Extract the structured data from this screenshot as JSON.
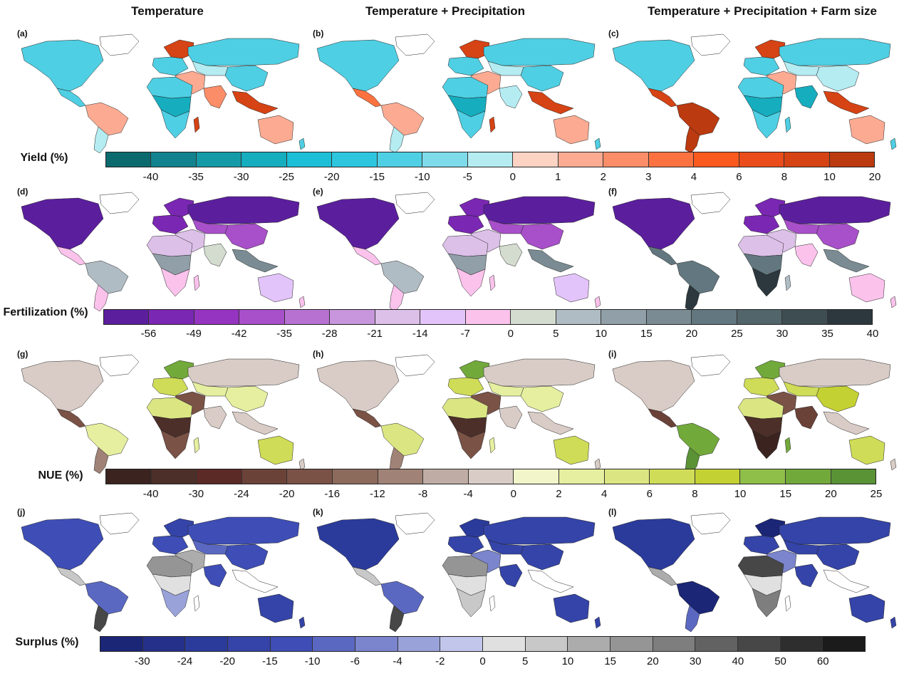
{
  "column_titles": [
    "Temperature",
    "Temperature + Precipitation",
    "Temperature + Precipitation + Farm size"
  ],
  "rows": [
    {
      "legend_label": "Yield (%)",
      "tick_labels": [
        "-40",
        "-35",
        "-30",
        "-25",
        "-20",
        "-15",
        "-10",
        "-5",
        "0",
        "1",
        "2",
        "3",
        "4",
        "6",
        "8",
        "10",
        "20"
      ],
      "colors": [
        "#0b6a6e",
        "#12838e",
        "#159aa8",
        "#16adbf",
        "#1cbfd6",
        "#2ec6df",
        "#4fcfe3",
        "#7ddbea",
        "#b4ecf2",
        "#fdd3c4",
        "#fcab92",
        "#fb8d68",
        "#fb7240",
        "#fb5a1e",
        "#ea4d1b",
        "#d64314",
        "#bb3a10"
      ],
      "panels": [
        {
          "label": "(a)",
          "colors": {
            "north_america": "#4fcfe3",
            "greenland": "#ffffff",
            "central_america": "#4fcfe3",
            "south_america_north": "#fcab92",
            "south_america_south": "#b4ecf2",
            "europe_north": "#d64314",
            "europe_west": "#4fcfe3",
            "russia": "#4fcfe3",
            "middle_east": "#fcab92",
            "central_asia": "#b4ecf2",
            "china": "#4fcfe3",
            "india": "#fb8d68",
            "southeast_asia": "#d64314",
            "africa_north": "#4fcfe3",
            "africa_central": "#16adbf",
            "africa_south": "#4fcfe3",
            "madagascar": "#d64314",
            "australia": "#fcab92",
            "new_zealand": "#4fcfe3"
          }
        },
        {
          "label": "(b)",
          "colors": {
            "north_america": "#4fcfe3",
            "greenland": "#ffffff",
            "central_america": "#fb7240",
            "south_america_north": "#fcab92",
            "south_america_south": "#b4ecf2",
            "europe_north": "#d64314",
            "europe_west": "#4fcfe3",
            "russia": "#4fcfe3",
            "middle_east": "#fcab92",
            "central_asia": "#b4ecf2",
            "china": "#4fcfe3",
            "india": "#b4ecf2",
            "southeast_asia": "#d64314",
            "africa_north": "#4fcfe3",
            "africa_central": "#16adbf",
            "africa_south": "#4fcfe3",
            "madagascar": "#d64314",
            "australia": "#fcab92",
            "new_zealand": "#4fcfe3"
          }
        },
        {
          "label": "(c)",
          "colors": {
            "north_america": "#4fcfe3",
            "greenland": "#ffffff",
            "central_america": "#d64314",
            "south_america_north": "#bb3a10",
            "south_america_south": "#bb3a10",
            "europe_north": "#d64314",
            "europe_west": "#4fcfe3",
            "russia": "#4fcfe3",
            "middle_east": "#fcab92",
            "central_asia": "#b4ecf2",
            "china": "#b4ecf2",
            "india": "#16adbf",
            "southeast_asia": "#d64314",
            "africa_north": "#4fcfe3",
            "africa_central": "#16adbf",
            "africa_south": "#4fcfe3",
            "madagascar": "#4fcfe3",
            "australia": "#fcab92",
            "new_zealand": "#4fcfe3"
          }
        }
      ]
    },
    {
      "legend_label": "Fertilization (%)",
      "tick_labels": [
        "-56",
        "-49",
        "-42",
        "-35",
        "-28",
        "-21",
        "-14",
        "-7",
        "0",
        "5",
        "10",
        "15",
        "20",
        "25",
        "30",
        "35",
        "40"
      ],
      "colors": [
        "#5b1f9e",
        "#7a27b3",
        "#9634c2",
        "#a84fca",
        "#b772d1",
        "#c896dc",
        "#dcc0e8",
        "#e3c4fa",
        "#fbc2ec",
        "#d3dccf",
        "#b0bcc4",
        "#909fa8",
        "#7a8b93",
        "#62777f",
        "#52656b",
        "#3e4d52",
        "#2c383d"
      ],
      "panels": [
        {
          "label": "(d)",
          "colors": {
            "north_america": "#5b1f9e",
            "greenland": "#ffffff",
            "central_america": "#fbc2ec",
            "south_america_north": "#b0bcc4",
            "south_america_south": "#fbc2ec",
            "europe_north": "#7a27b3",
            "europe_west": "#7a27b3",
            "russia": "#5b1f9e",
            "middle_east": "#dcc0e8",
            "central_asia": "#a84fca",
            "china": "#a84fca",
            "india": "#d3dccf",
            "southeast_asia": "#7a8b93",
            "africa_north": "#dcc0e8",
            "africa_central": "#909fa8",
            "africa_south": "#fbc2ec",
            "madagascar": "#fbc2ec",
            "australia": "#e3c4fa",
            "new_zealand": "#fbc2ec"
          }
        },
        {
          "label": "(e)",
          "colors": {
            "north_america": "#5b1f9e",
            "greenland": "#ffffff",
            "central_america": "#fbc2ec",
            "south_america_north": "#b0bcc4",
            "south_america_south": "#fbc2ec",
            "europe_north": "#7a27b3",
            "europe_west": "#7a27b3",
            "russia": "#5b1f9e",
            "middle_east": "#dcc0e8",
            "central_asia": "#a84fca",
            "china": "#a84fca",
            "india": "#d3dccf",
            "southeast_asia": "#7a8b93",
            "africa_north": "#dcc0e8",
            "africa_central": "#909fa8",
            "africa_south": "#fbc2ec",
            "madagascar": "#fbc2ec",
            "australia": "#e3c4fa",
            "new_zealand": "#fbc2ec"
          }
        },
        {
          "label": "(f)",
          "colors": {
            "north_america": "#5b1f9e",
            "greenland": "#ffffff",
            "central_america": "#62777f",
            "south_america_north": "#62777f",
            "south_america_south": "#2c383d",
            "europe_north": "#7a27b3",
            "europe_west": "#7a27b3",
            "russia": "#5b1f9e",
            "middle_east": "#dcc0e8",
            "central_asia": "#a84fca",
            "china": "#a84fca",
            "india": "#fbc2ec",
            "southeast_asia": "#7a8b93",
            "africa_north": "#dcc0e8",
            "africa_central": "#62777f",
            "africa_south": "#2c383d",
            "madagascar": "#b0bcc4",
            "australia": "#fbc2ec",
            "new_zealand": "#fbc2ec"
          }
        }
      ]
    },
    {
      "legend_label": "NUE (%)",
      "tick_labels": [
        "-40",
        "-30",
        "-24",
        "-20",
        "-16",
        "-12",
        "-8",
        "-4",
        "0",
        "2",
        "4",
        "6",
        "8",
        "10",
        "15",
        "20",
        "25"
      ],
      "colors": [
        "#3b2420",
        "#4d2f29",
        "#5b2a26",
        "#6b4238",
        "#7a5246",
        "#8c6a5c",
        "#a08276",
        "#bfaca4",
        "#d9ccc6",
        "#f1f5c9",
        "#e6ef9f",
        "#dbe683",
        "#cfdc57",
        "#c4d132",
        "#8fbf48",
        "#72a93b",
        "#5a9236"
      ],
      "panels": [
        {
          "label": "(g)",
          "colors": {
            "north_america": "#d9ccc6",
            "greenland": "#ffffff",
            "central_america": "#7a5246",
            "south_america_north": "#e6ef9f",
            "south_america_south": "#a08276",
            "europe_north": "#72a93b",
            "europe_west": "#cfdc57",
            "russia": "#d9ccc6",
            "middle_east": "#7a5246",
            "central_asia": "#e6ef9f",
            "china": "#e6ef9f",
            "india": "#d9ccc6",
            "southeast_asia": "#d9ccc6",
            "africa_north": "#dbe683",
            "africa_central": "#4d2f29",
            "africa_south": "#7a5246",
            "madagascar": "#e6ef9f",
            "australia": "#cfdc57",
            "new_zealand": "#d9ccc6"
          }
        },
        {
          "label": "(h)",
          "colors": {
            "north_america": "#d9ccc6",
            "greenland": "#ffffff",
            "central_america": "#7a5246",
            "south_america_north": "#dbe683",
            "south_america_south": "#a08276",
            "europe_north": "#72a93b",
            "europe_west": "#cfdc57",
            "russia": "#d9ccc6",
            "middle_east": "#7a5246",
            "central_asia": "#e6ef9f",
            "china": "#e6ef9f",
            "india": "#d9ccc6",
            "southeast_asia": "#d9ccc6",
            "africa_north": "#dbe683",
            "africa_central": "#4d2f29",
            "africa_south": "#7a5246",
            "madagascar": "#e6ef9f",
            "australia": "#cfdc57",
            "new_zealand": "#d9ccc6"
          }
        },
        {
          "label": "(i)",
          "colors": {
            "north_america": "#d9ccc6",
            "greenland": "#ffffff",
            "central_america": "#6b4238",
            "south_america_north": "#72a93b",
            "south_america_south": "#5a9236",
            "europe_north": "#72a93b",
            "europe_west": "#cfdc57",
            "russia": "#d9ccc6",
            "middle_east": "#7a5246",
            "central_asia": "#cfdc57",
            "china": "#c4d132",
            "india": "#6b4238",
            "southeast_asia": "#d9ccc6",
            "africa_north": "#dbe683",
            "africa_central": "#4d2f29",
            "africa_south": "#3b2420",
            "madagascar": "#72a93b",
            "australia": "#cfdc57",
            "new_zealand": "#d9ccc6"
          }
        }
      ]
    },
    {
      "legend_label": "Surplus (%)",
      "tick_labels": [
        "-30",
        "-24",
        "-20",
        "-15",
        "-10",
        "-6",
        "-4",
        "-2",
        "0",
        "5",
        "10",
        "15",
        "20",
        "30",
        "40",
        "50",
        "60"
      ],
      "colors": [
        "#1b2677",
        "#24308a",
        "#2b3b9b",
        "#3444a8",
        "#3e4eb6",
        "#5b68c2",
        "#7a85cd",
        "#9aa2da",
        "#c2c6eb",
        "#e0e0e0",
        "#c8c8c8",
        "#acacac",
        "#959595",
        "#7e7e7e",
        "#626262",
        "#474747",
        "#2e2e2e",
        "#1b1b1b"
      ],
      "panels": [
        {
          "label": "(j)",
          "colors": {
            "north_america": "#3e4eb6",
            "greenland": "#ffffff",
            "central_america": "#c8c8c8",
            "south_america_north": "#5b68c2",
            "south_america_south": "#474747",
            "europe_north": "#3444a8",
            "europe_west": "#3e4eb6",
            "russia": "#3e4eb6",
            "middle_east": "#acacac",
            "central_asia": "#5b68c2",
            "china": "#3e4eb6",
            "india": "#3e4eb6",
            "southeast_asia": "#ffffff",
            "africa_north": "#959595",
            "africa_central": "#e0e0e0",
            "africa_south": "#9aa2da",
            "madagascar": "#ffffff",
            "australia": "#3444a8",
            "new_zealand": "#3444a8"
          }
        },
        {
          "label": "(k)",
          "colors": {
            "north_america": "#2b3b9b",
            "greenland": "#ffffff",
            "central_america": "#c8c8c8",
            "south_america_north": "#5b68c2",
            "south_america_south": "#474747",
            "europe_north": "#2b3b9b",
            "europe_west": "#3444a8",
            "russia": "#3444a8",
            "middle_east": "#7a85cd",
            "central_asia": "#3444a8",
            "china": "#3444a8",
            "india": "#3444a8",
            "southeast_asia": "#ffffff",
            "africa_north": "#959595",
            "africa_central": "#e0e0e0",
            "africa_south": "#c8c8c8",
            "madagascar": "#ffffff",
            "australia": "#3444a8",
            "new_zealand": "#3444a8"
          }
        },
        {
          "label": "(l)",
          "colors": {
            "north_america": "#2b3b9b",
            "greenland": "#ffffff",
            "central_america": "#acacac",
            "south_america_north": "#1b2677",
            "south_america_south": "#5b68c2",
            "europe_north": "#1b2677",
            "europe_west": "#3444a8",
            "russia": "#3444a8",
            "middle_east": "#7a85cd",
            "central_asia": "#3444a8",
            "china": "#3444a8",
            "india": "#3444a8",
            "southeast_asia": "#ffffff",
            "africa_north": "#474747",
            "africa_central": "#e0e0e0",
            "africa_south": "#7e7e7e",
            "madagascar": "#ffffff",
            "australia": "#3444a8",
            "new_zealand": "#3444a8"
          }
        }
      ]
    }
  ]
}
